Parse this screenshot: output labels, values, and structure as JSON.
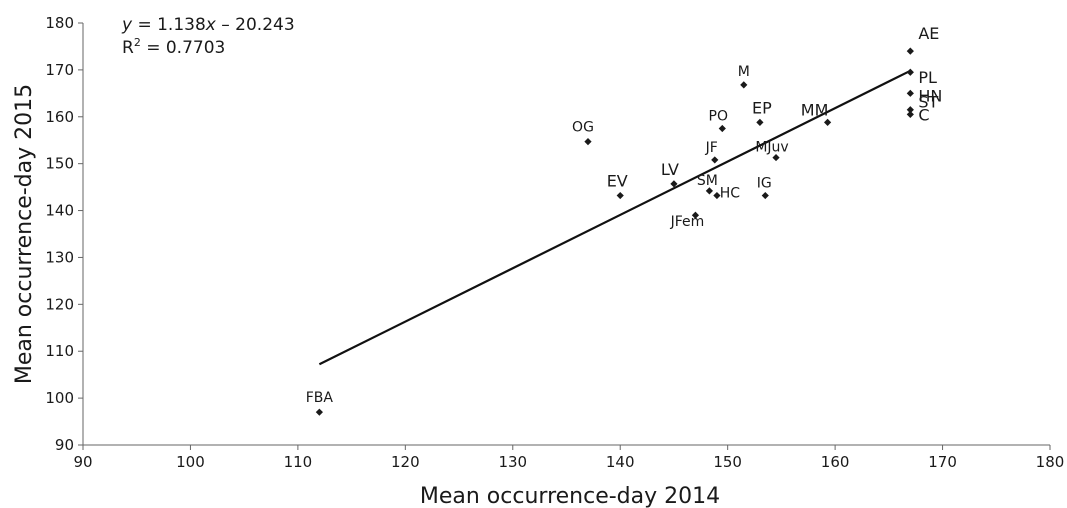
{
  "chart_data": {
    "type": "scatter",
    "title": "",
    "xlabel": "Mean occurrence-day 2014",
    "ylabel": "Mean occurrence-day 2015",
    "xlim": [
      90,
      180
    ],
    "ylim": [
      90,
      180
    ],
    "xticks": [
      90,
      100,
      110,
      120,
      130,
      140,
      150,
      160,
      170,
      180
    ],
    "yticks": [
      90,
      100,
      110,
      120,
      130,
      140,
      150,
      160,
      170,
      180
    ],
    "grid": false,
    "legend": "none",
    "equation": {
      "y_var": "y",
      "formula": " = 1.138",
      "x_var": "x",
      "intercept": " – 20.243",
      "r2_prefix": "R",
      "r2_sup": "2",
      "r2_value": " = 0.7703"
    },
    "trendline": {
      "slope": 1.138,
      "intercept": -20.243,
      "x_start": 112,
      "x_end": 167
    },
    "points": [
      {
        "label": "FBA",
        "x": 112,
        "y": 97
      },
      {
        "label": "OG",
        "x": 137,
        "y": 154.7
      },
      {
        "label": "EV",
        "x": 140,
        "y": 143.2
      },
      {
        "label": "LV",
        "x": 145,
        "y": 145.7
      },
      {
        "label": "JFem",
        "x": 147,
        "y": 139
      },
      {
        "label": "SM",
        "x": 148.3,
        "y": 144.2
      },
      {
        "label": "JF",
        "x": 148.8,
        "y": 150.8
      },
      {
        "label": "HC",
        "x": 149,
        "y": 143.2
      },
      {
        "label": "PO",
        "x": 149.5,
        "y": 157.5
      },
      {
        "label": "M",
        "x": 151.5,
        "y": 166.8
      },
      {
        "label": "EP",
        "x": 153,
        "y": 158.8
      },
      {
        "label": "IG",
        "x": 153.5,
        "y": 143.2
      },
      {
        "label": "MJuv",
        "x": 154.5,
        "y": 151.3
      },
      {
        "label": "MM",
        "x": 159.3,
        "y": 158.8
      },
      {
        "label": "AE",
        "x": 167,
        "y": 174
      },
      {
        "label": "PL",
        "x": 167,
        "y": 169.5
      },
      {
        "label": "HN",
        "x": 167,
        "y": 165
      },
      {
        "label": "ST",
        "x": 167,
        "y": 161.5
      },
      {
        "label": "C",
        "x": 167,
        "y": 160.5
      }
    ],
    "marker_color": "#1a1a1a",
    "line_color": "#111111"
  }
}
